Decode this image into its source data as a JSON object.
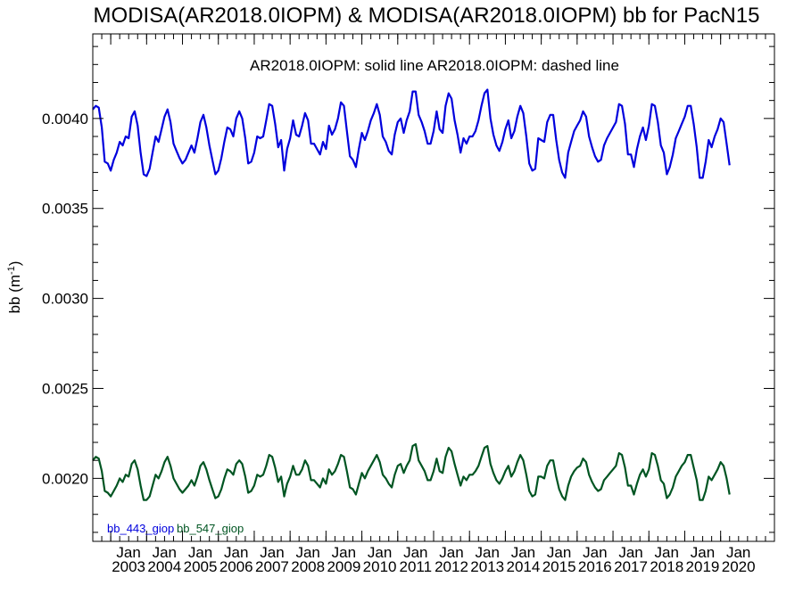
{
  "chart_data": {
    "type": "line",
    "title": "MODISA(AR2018.0IOPM) & MODISA(AR2018.0IOPM)  bb for PacN15",
    "annotation": "AR2018.0IOPM: solid line   AR2018.0IOPM: dashed line",
    "ylabel_main": "bb (m",
    "ylabel_exp": "-1",
    "ylabel_close": ")",
    "xlabel": "",
    "x_axis": "date",
    "xlim": [
      "2002-07",
      "2021-07"
    ],
    "ylim": [
      0.00165,
      0.00447
    ],
    "y_ticks": [
      {
        "value": 0.002,
        "label": "0.0020"
      },
      {
        "value": 0.0025,
        "label": "0.0025"
      },
      {
        "value": 0.003,
        "label": "0.0030"
      },
      {
        "value": 0.0035,
        "label": "0.0035"
      },
      {
        "value": 0.004,
        "label": "0.0040"
      }
    ],
    "x_ticks": [
      {
        "date": "2003-01",
        "month": "Jan",
        "year": "2003"
      },
      {
        "date": "2004-01",
        "month": "Jan",
        "year": "2004"
      },
      {
        "date": "2005-01",
        "month": "Jan",
        "year": "2005"
      },
      {
        "date": "2006-01",
        "month": "Jan",
        "year": "2006"
      },
      {
        "date": "2007-01",
        "month": "Jan",
        "year": "2007"
      },
      {
        "date": "2008-01",
        "month": "Jan",
        "year": "2008"
      },
      {
        "date": "2009-01",
        "month": "Jan",
        "year": "2009"
      },
      {
        "date": "2010-01",
        "month": "Jan",
        "year": "2010"
      },
      {
        "date": "2011-01",
        "month": "Jan",
        "year": "2011"
      },
      {
        "date": "2012-01",
        "month": "Jan",
        "year": "2012"
      },
      {
        "date": "2013-01",
        "month": "Jan",
        "year": "2013"
      },
      {
        "date": "2014-01",
        "month": "Jan",
        "year": "2014"
      },
      {
        "date": "2015-01",
        "month": "Jan",
        "year": "2015"
      },
      {
        "date": "2016-01",
        "month": "Jan",
        "year": "2016"
      },
      {
        "date": "2017-01",
        "month": "Jan",
        "year": "2017"
      },
      {
        "date": "2018-01",
        "month": "Jan",
        "year": "2018"
      },
      {
        "date": "2019-01",
        "month": "Jan",
        "year": "2019"
      },
      {
        "date": "2020-01",
        "month": "Jan",
        "year": "2020"
      }
    ],
    "legend_position": "bottom-left",
    "start_month": "2002-07",
    "series": [
      {
        "name": "bb_443_giop",
        "color": "#0000dd",
        "line_style": "solid",
        "values": [
          0.00405,
          0.00407,
          0.00406,
          0.00395,
          0.00376,
          0.00375,
          0.00371,
          0.00377,
          0.00381,
          0.00387,
          0.00385,
          0.0039,
          0.00389,
          0.00401,
          0.00404,
          0.00396,
          0.00381,
          0.00369,
          0.00368,
          0.00372,
          0.00381,
          0.0039,
          0.00387,
          0.00394,
          0.00401,
          0.00405,
          0.00398,
          0.00386,
          0.00382,
          0.00378,
          0.00375,
          0.00377,
          0.00381,
          0.00385,
          0.00381,
          0.00389,
          0.00398,
          0.00402,
          0.00395,
          0.00385,
          0.00377,
          0.00369,
          0.00371,
          0.00378,
          0.00387,
          0.00395,
          0.00394,
          0.0039,
          0.004,
          0.00404,
          0.004,
          0.00389,
          0.00375,
          0.00376,
          0.00381,
          0.0039,
          0.00389,
          0.0039,
          0.00399,
          0.00408,
          0.00407,
          0.00397,
          0.00384,
          0.00388,
          0.00371,
          0.00383,
          0.00389,
          0.00399,
          0.00391,
          0.0039,
          0.00396,
          0.00403,
          0.00399,
          0.00386,
          0.00386,
          0.00383,
          0.0038,
          0.00387,
          0.00383,
          0.00396,
          0.00391,
          0.00394,
          0.004,
          0.00409,
          0.00407,
          0.00393,
          0.00379,
          0.00377,
          0.00373,
          0.00383,
          0.00392,
          0.00388,
          0.00393,
          0.00399,
          0.00403,
          0.00408,
          0.00402,
          0.0039,
          0.00387,
          0.00382,
          0.0038,
          0.00391,
          0.00398,
          0.004,
          0.00392,
          0.00399,
          0.00404,
          0.00415,
          0.00415,
          0.00402,
          0.00398,
          0.00393,
          0.00386,
          0.00386,
          0.00393,
          0.00404,
          0.00394,
          0.00392,
          0.00407,
          0.00414,
          0.00411,
          0.00399,
          0.00391,
          0.00381,
          0.00389,
          0.00386,
          0.0039,
          0.0039,
          0.00393,
          0.00399,
          0.00407,
          0.00414,
          0.00416,
          0.004,
          0.00391,
          0.00385,
          0.00382,
          0.00387,
          0.00394,
          0.00399,
          0.00389,
          0.00393,
          0.00401,
          0.00407,
          0.00403,
          0.0039,
          0.00375,
          0.00371,
          0.00372,
          0.00389,
          0.00388,
          0.00387,
          0.00398,
          0.00402,
          0.00402,
          0.00388,
          0.00377,
          0.0037,
          0.00367,
          0.00381,
          0.00387,
          0.00393,
          0.00396,
          0.00399,
          0.00404,
          0.00401,
          0.0039,
          0.00384,
          0.00379,
          0.00376,
          0.00377,
          0.00385,
          0.00389,
          0.00392,
          0.00395,
          0.00398,
          0.00408,
          0.00407,
          0.00397,
          0.0038,
          0.0038,
          0.00373,
          0.00383,
          0.0039,
          0.00395,
          0.00388,
          0.00396,
          0.00408,
          0.00407,
          0.00398,
          0.00385,
          0.00381,
          0.00369,
          0.00373,
          0.0038,
          0.00389,
          0.00393,
          0.00397,
          0.00401,
          0.00407,
          0.00407,
          0.00397,
          0.00384,
          0.00367,
          0.00367,
          0.00376,
          0.00388,
          0.00384,
          0.0039,
          0.00394,
          0.004,
          0.00398,
          0.00386,
          0.00374
        ]
      },
      {
        "name": "bb_547_giop",
        "color": "#005522",
        "line_style": "solid",
        "values": [
          0.0021,
          0.00212,
          0.00211,
          0.00204,
          0.00193,
          0.00192,
          0.0019,
          0.00193,
          0.00196,
          0.002,
          0.00198,
          0.00202,
          0.00201,
          0.00208,
          0.0021,
          0.00205,
          0.00196,
          0.00188,
          0.00188,
          0.0019,
          0.00196,
          0.00202,
          0.002,
          0.00204,
          0.00209,
          0.00212,
          0.00207,
          0.002,
          0.00197,
          0.00194,
          0.00192,
          0.00194,
          0.00196,
          0.00199,
          0.00196,
          0.00201,
          0.00207,
          0.00209,
          0.00205,
          0.00199,
          0.00194,
          0.00189,
          0.0019,
          0.00194,
          0.002,
          0.00205,
          0.00204,
          0.00202,
          0.00208,
          0.0021,
          0.00208,
          0.00201,
          0.00192,
          0.00193,
          0.00196,
          0.00202,
          0.00201,
          0.00202,
          0.00207,
          0.00213,
          0.00212,
          0.00206,
          0.00198,
          0.00201,
          0.0019,
          0.00197,
          0.00201,
          0.00207,
          0.00202,
          0.00202,
          0.00205,
          0.0021,
          0.00207,
          0.00199,
          0.00199,
          0.00197,
          0.00195,
          0.002,
          0.00197,
          0.00205,
          0.00202,
          0.00204,
          0.00208,
          0.00213,
          0.00212,
          0.00204,
          0.00195,
          0.00194,
          0.00191,
          0.00197,
          0.00203,
          0.002,
          0.00204,
          0.00207,
          0.0021,
          0.00213,
          0.00209,
          0.00202,
          0.002,
          0.00197,
          0.00195,
          0.00202,
          0.00207,
          0.00208,
          0.00203,
          0.00207,
          0.0021,
          0.00218,
          0.00219,
          0.0021,
          0.00207,
          0.00204,
          0.00199,
          0.00199,
          0.00204,
          0.00211,
          0.00204,
          0.00203,
          0.00212,
          0.00217,
          0.00215,
          0.00208,
          0.00202,
          0.00196,
          0.00201,
          0.00199,
          0.00202,
          0.00202,
          0.00204,
          0.00207,
          0.00212,
          0.00217,
          0.00218,
          0.00208,
          0.00203,
          0.00199,
          0.00197,
          0.002,
          0.00204,
          0.00207,
          0.00201,
          0.00204,
          0.00209,
          0.00213,
          0.0021,
          0.00202,
          0.00193,
          0.0019,
          0.00191,
          0.00201,
          0.00201,
          0.002,
          0.00207,
          0.0021,
          0.0021,
          0.00201,
          0.00194,
          0.0019,
          0.00188,
          0.00196,
          0.00201,
          0.00204,
          0.00206,
          0.00207,
          0.00211,
          0.00209,
          0.00202,
          0.00198,
          0.00195,
          0.00193,
          0.00194,
          0.00199,
          0.00201,
          0.00203,
          0.00205,
          0.00207,
          0.00214,
          0.00213,
          0.00206,
          0.00196,
          0.00196,
          0.00191,
          0.00197,
          0.00202,
          0.00205,
          0.00201,
          0.00205,
          0.00214,
          0.00213,
          0.00207,
          0.00199,
          0.00197,
          0.00189,
          0.00191,
          0.00195,
          0.00201,
          0.00204,
          0.00207,
          0.00209,
          0.00213,
          0.00213,
          0.00206,
          0.00199,
          0.00188,
          0.00188,
          0.00193,
          0.00201,
          0.00199,
          0.00202,
          0.00205,
          0.00209,
          0.00207,
          0.002,
          0.00191
        ]
      }
    ]
  }
}
